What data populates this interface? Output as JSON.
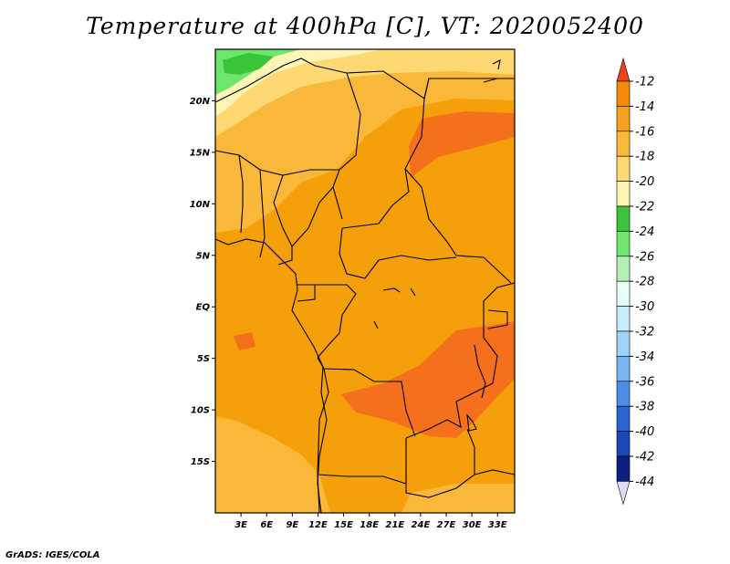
{
  "title": "Temperature at 400hPa [C], VT: 2020052400",
  "credit": "GrADS: IGES/COLA",
  "map": {
    "lon_range": [
      0,
      35
    ],
    "lat_range": [
      -20,
      25
    ],
    "lat_ticks": [
      {
        "value": 20,
        "label": "20N"
      },
      {
        "value": 15,
        "label": "15N"
      },
      {
        "value": 10,
        "label": "10N"
      },
      {
        "value": 5,
        "label": "5N"
      },
      {
        "value": 0,
        "label": "EQ"
      },
      {
        "value": -5,
        "label": "5S"
      },
      {
        "value": -10,
        "label": "10S"
      },
      {
        "value": -15,
        "label": "15S"
      }
    ],
    "lon_ticks": [
      {
        "value": 3,
        "label": "3E"
      },
      {
        "value": 6,
        "label": "6E"
      },
      {
        "value": 9,
        "label": "9E"
      },
      {
        "value": 12,
        "label": "12E"
      },
      {
        "value": 15,
        "label": "15E"
      },
      {
        "value": 18,
        "label": "18E"
      },
      {
        "value": 21,
        "label": "21E"
      },
      {
        "value": 24,
        "label": "24E"
      },
      {
        "value": 27,
        "label": "27E"
      },
      {
        "value": 30,
        "label": "30E"
      },
      {
        "value": 33,
        "label": "33E"
      }
    ]
  },
  "colorbar": {
    "labels": [
      "-12",
      "-14",
      "-16",
      "-18",
      "-20",
      "-22",
      "-24",
      "-26",
      "-28",
      "-30",
      "-32",
      "-34",
      "-36",
      "-38",
      "-40",
      "-42",
      "-44"
    ],
    "colors": [
      "#f56a1c",
      "#f58a0a",
      "#f5a020",
      "#f9b83a",
      "#fdd873",
      "#fef4b3",
      "#3ac43a",
      "#6ee66e",
      "#b4f0b4",
      "#e8fff8",
      "#c8ecfa",
      "#a0d2f8",
      "#78b4f0",
      "#4a8ee6",
      "#2c64d4",
      "#1848b8",
      "#0c1e7e"
    ],
    "top_color": "#f0441e",
    "bottom_color": "#dcdcf8"
  },
  "field_colors": {
    "base": "#f5a00a",
    "warm": "#f5701c",
    "cool1": "#f9b83a",
    "cool2": "#fdd873",
    "cool3": "#fef4b3",
    "green1": "#6ee66e",
    "green2": "#3ac43a"
  }
}
